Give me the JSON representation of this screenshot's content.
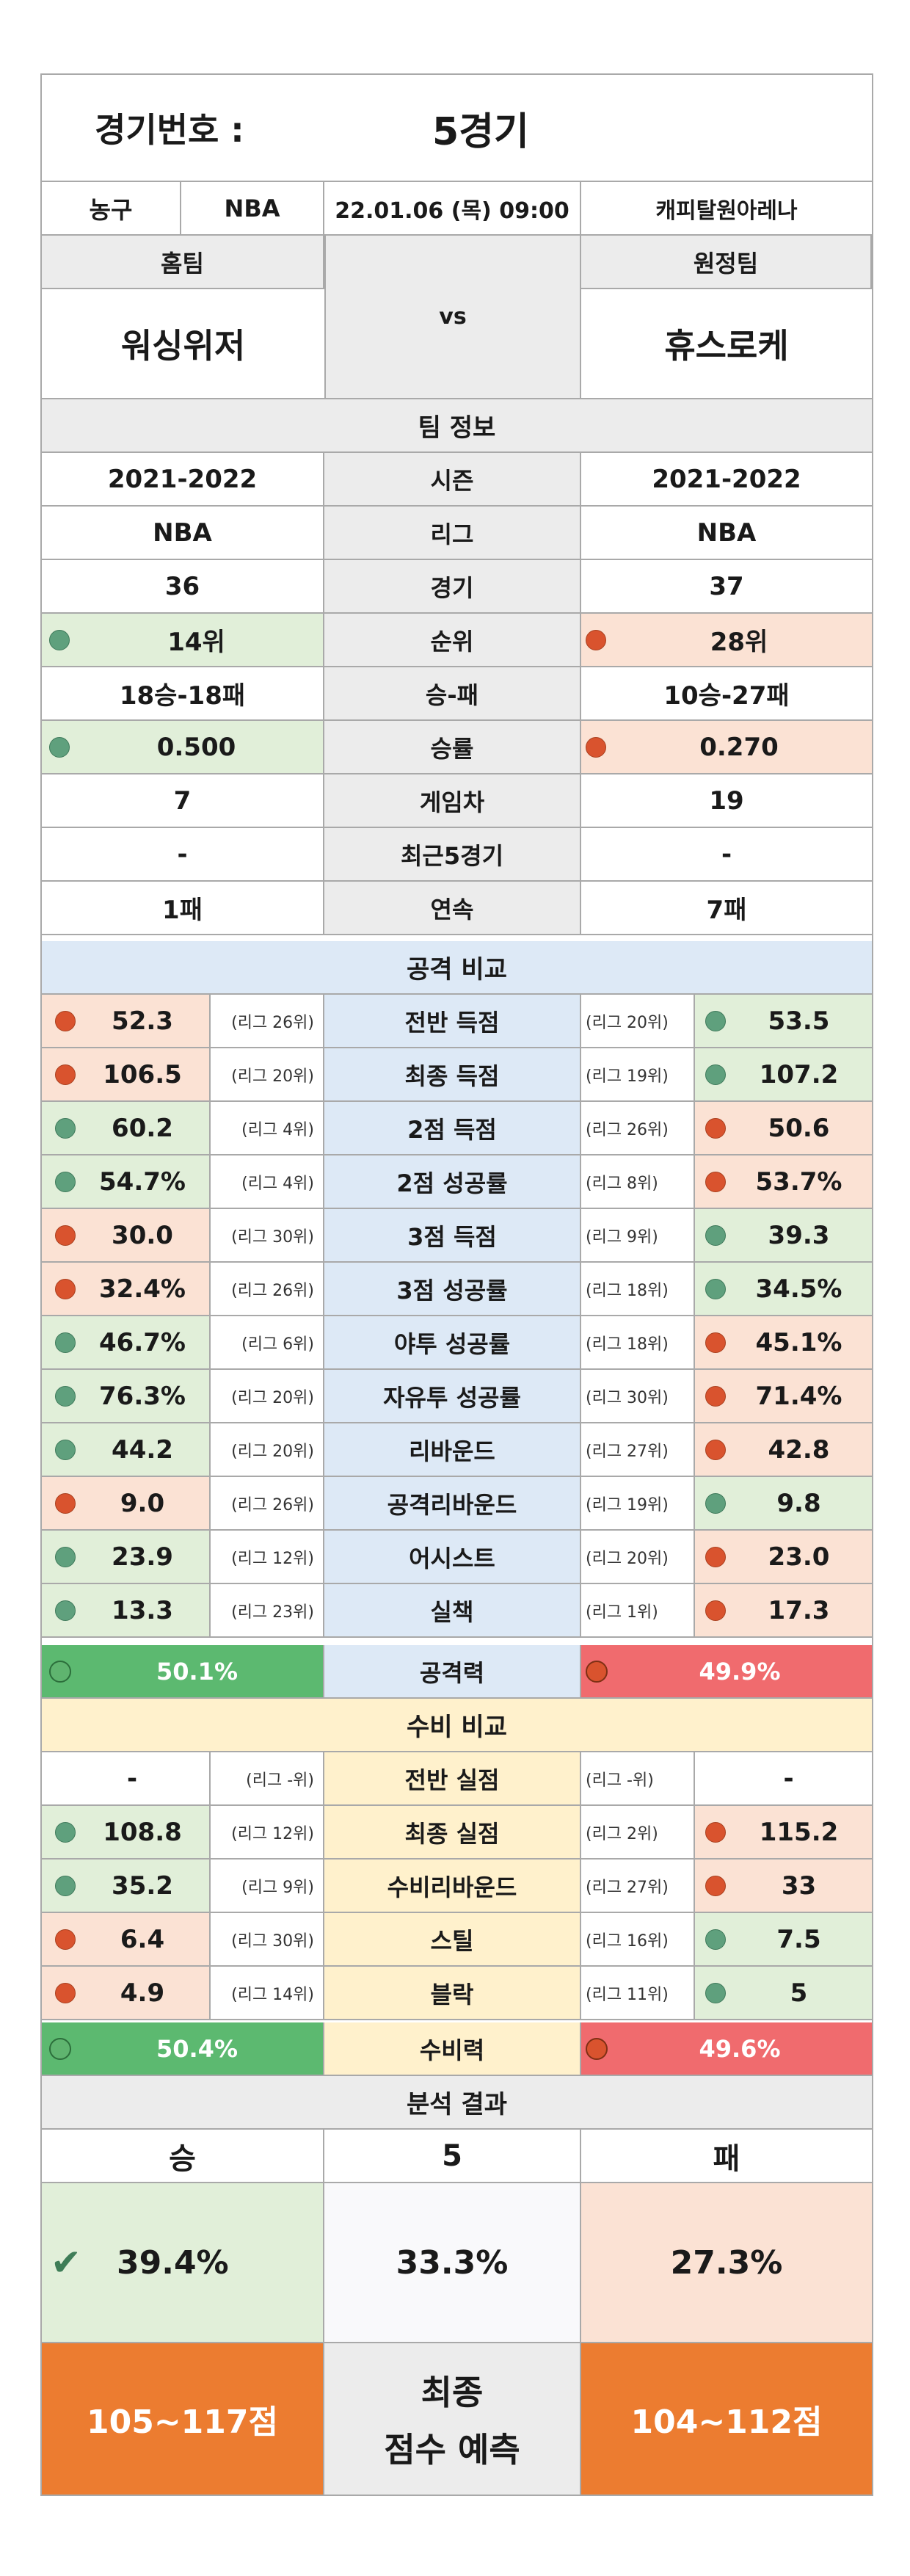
{
  "header": {
    "game_no_label": "경기번호 :",
    "game_no_value": "5경기"
  },
  "info": {
    "sport": "농구",
    "league": "NBA",
    "datetime": "22.01.06 (목) 09:00",
    "venue": "캐피탈원아레나"
  },
  "teams": {
    "home_label": "홈팀",
    "away_label": "원정팀",
    "home": "워싱위저",
    "away": "휴스로케",
    "vs": "vs"
  },
  "team_info": {
    "title": "팀 정보",
    "rows": [
      {
        "label": "시즌",
        "home": "2021-2022",
        "away": "2021-2022"
      },
      {
        "label": "리그",
        "home": "NBA",
        "away": "NBA"
      },
      {
        "label": "경기",
        "home": "36",
        "away": "37"
      },
      {
        "label": "순위",
        "home": "14위",
        "away": "28위"
      },
      {
        "label": "승-패",
        "home": "18승-18패",
        "away": "10승-27패"
      },
      {
        "label": "승률",
        "home": "0.500",
        "away": "0.270"
      },
      {
        "label": "게임차",
        "home": "7",
        "away": "19"
      },
      {
        "label": "최근5경기",
        "home": "-",
        "away": "-"
      },
      {
        "label": "연속",
        "home": "1패",
        "away": "7패"
      }
    ]
  },
  "attack": {
    "title": "공격 비교",
    "rows": [
      {
        "label": "전반 득점",
        "home": "52.3",
        "home_rank": "(리그 26위)",
        "away": "53.5",
        "away_rank": "(리그 20위)"
      },
      {
        "label": "최종 득점",
        "home": "106.5",
        "home_rank": "(리그 20위)",
        "away": "107.2",
        "away_rank": "(리그 19위)"
      },
      {
        "label": "2점 득점",
        "home": "60.2",
        "home_rank": "(리그 4위)",
        "away": "50.6",
        "away_rank": "(리그 26위)"
      },
      {
        "label": "2점 성공률",
        "home": "54.7%",
        "home_rank": "(리그 4위)",
        "away": "53.7%",
        "away_rank": "(리그 8위)"
      },
      {
        "label": "3점 득점",
        "home": "30.0",
        "home_rank": "(리그 30위)",
        "away": "39.3",
        "away_rank": "(리그 9위)"
      },
      {
        "label": "3점 성공률",
        "home": "32.4%",
        "home_rank": "(리그 26위)",
        "away": "34.5%",
        "away_rank": "(리그 18위)"
      },
      {
        "label": "야투 성공률",
        "home": "46.7%",
        "home_rank": "(리그 6위)",
        "away": "45.1%",
        "away_rank": "(리그 18위)"
      },
      {
        "label": "자유투 성공률",
        "home": "76.3%",
        "home_rank": "(리그 20위)",
        "away": "71.4%",
        "away_rank": "(리그 30위)"
      },
      {
        "label": "리바운드",
        "home": "44.2",
        "home_rank": "(리그 20위)",
        "away": "42.8",
        "away_rank": "(리그 27위)"
      },
      {
        "label": "공격리바운드",
        "home": "9.0",
        "home_rank": "(리그 26위)",
        "away": "9.8",
        "away_rank": "(리그 19위)"
      },
      {
        "label": "어시스트",
        "home": "23.9",
        "home_rank": "(리그 12위)",
        "away": "23.0",
        "away_rank": "(리그 20위)"
      },
      {
        "label": "실책",
        "home": "13.3",
        "home_rank": "(리그 23위)",
        "away": "17.3",
        "away_rank": "(리그 1위)"
      }
    ],
    "power_label": "공격력",
    "home_power": "50.1%",
    "away_power": "49.9%"
  },
  "defense": {
    "title": "수비 비교",
    "rows": [
      {
        "label": "전반 실점",
        "home": "-",
        "home_rank": "(리그 -위)",
        "away": "-",
        "away_rank": "(리그 -위)"
      },
      {
        "label": "최종 실점",
        "home": "108.8",
        "home_rank": "(리그 12위)",
        "away": "115.2",
        "away_rank": "(리그 2위)"
      },
      {
        "label": "수비리바운드",
        "home": "35.2",
        "home_rank": "(리그 9위)",
        "away": "33",
        "away_rank": "(리그 27위)"
      },
      {
        "label": "스틸",
        "home": "6.4",
        "home_rank": "(리그 30위)",
        "away": "7.5",
        "away_rank": "(리그 16위)"
      },
      {
        "label": "블락",
        "home": "4.9",
        "home_rank": "(리그 14위)",
        "away": "5",
        "away_rank": "(리그 11위)"
      }
    ],
    "power_label": "수비력",
    "home_power": "50.4%",
    "away_power": "49.6%"
  },
  "result": {
    "title": "분석 결과",
    "win_label": "승",
    "draw_label": "5",
    "loss_label": "패",
    "win_pct": "39.4%",
    "draw_pct": "33.3%",
    "loss_pct": "27.3%",
    "home_score": "105~117점",
    "away_score": "104~112점",
    "final_label_1": "최종",
    "final_label_2": "점수 예측"
  },
  "colors": {
    "win": "#e1efd9",
    "loss": "#fbe2d4",
    "green_dot": "#5fa07d",
    "red_dot": "#d9532e",
    "orange": "#ec7c30"
  }
}
